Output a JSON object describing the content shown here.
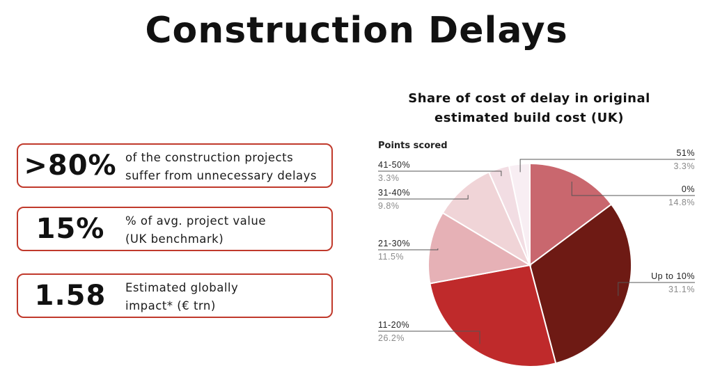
{
  "page": {
    "title": "Construction Delays"
  },
  "stats": [
    {
      "value": ">80%",
      "line1": "of the construction projects",
      "line2": "suffer from unnecessary delays"
    },
    {
      "value": "15%",
      "line1": "% of avg. project value",
      "line2": "(UK benchmark)"
    },
    {
      "value": "1.58",
      "line1": "Estimated globally",
      "line2": "impact* (€ trn)"
    }
  ],
  "chart_data": {
    "type": "pie",
    "title_line1": "Share of cost of delay in original",
    "title_line2": "estimated build cost (UK)",
    "legend_heading": "Points scored",
    "slices": [
      {
        "label": "0%",
        "value": 14.8,
        "value_label": "14.8%",
        "color": "#c9676e"
      },
      {
        "label": "Up to 10%",
        "value": 31.1,
        "value_label": "31.1%",
        "color": "#6e1a14"
      },
      {
        "label": "11-20%",
        "value": 26.2,
        "value_label": "26.2%",
        "color": "#bf2a2b"
      },
      {
        "label": "21-30%",
        "value": 11.5,
        "value_label": "11.5%",
        "color": "#e6b1b6"
      },
      {
        "label": "31-40%",
        "value": 9.8,
        "value_label": "9.8%",
        "color": "#f0d4d7"
      },
      {
        "label": "41-50%",
        "value": 3.3,
        "value_label": "3.3%",
        "color": "#f2dde3"
      },
      {
        "label": "51%",
        "value": 3.3,
        "value_label": "3.3%",
        "color": "#f8eef3"
      }
    ]
  }
}
